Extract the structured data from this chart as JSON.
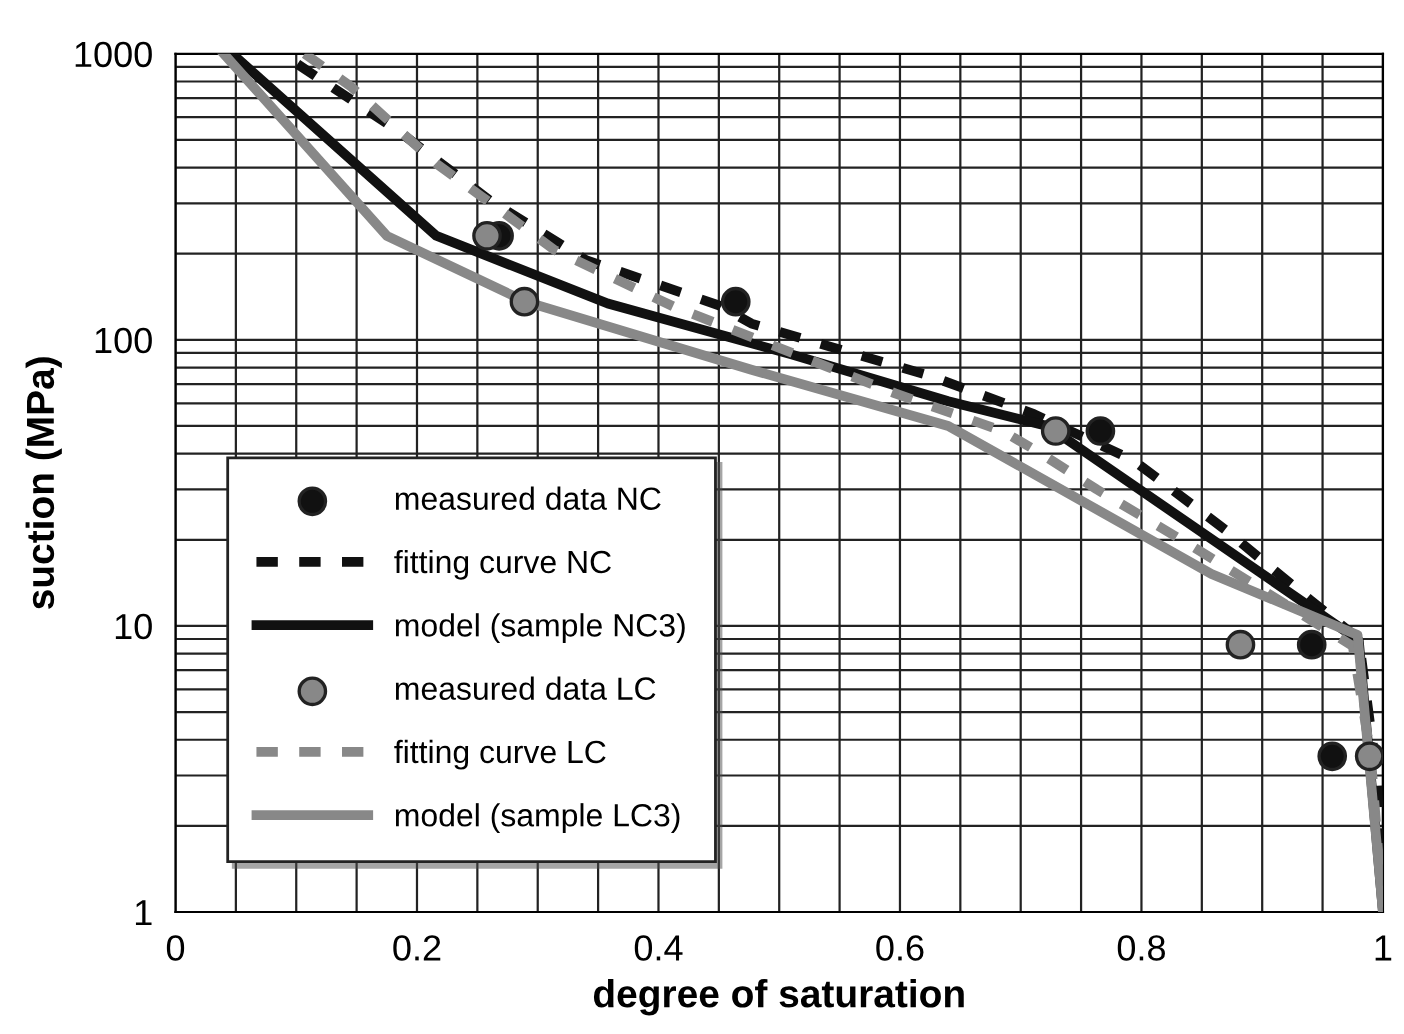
{
  "chart_data": {
    "type": "line",
    "xlabel": "degree of saturation",
    "ylabel": "suction (MPa)",
    "log": "y",
    "grid": true,
    "legend": "bottom left",
    "xlim": [
      0,
      1
    ],
    "ylim": [
      1,
      1000
    ],
    "xticks": [
      0,
      {
        "value": 0.05,
        "label": null
      },
      {
        "value": 0.1,
        "label": null
      },
      {
        "value": 0.15,
        "label": null
      },
      0.2,
      {
        "value": 0.25,
        "label": null
      },
      {
        "value": 0.3,
        "label": null
      },
      {
        "value": 0.35,
        "label": null
      },
      0.4,
      {
        "value": 0.45,
        "label": null
      },
      {
        "value": 0.5,
        "label": null
      },
      {
        "value": 0.55,
        "label": null
      },
      0.6,
      {
        "value": 0.65,
        "label": null
      },
      {
        "value": 0.7,
        "label": null
      },
      {
        "value": 0.75,
        "label": null
      },
      0.8,
      {
        "value": 0.85,
        "label": null
      },
      {
        "value": 0.9,
        "label": null
      },
      {
        "value": 0.95,
        "label": null
      },
      1
    ],
    "yticks": [
      1,
      {
        "value": 2,
        "label": null
      },
      {
        "value": 3,
        "label": null
      },
      {
        "value": 4,
        "label": null
      },
      {
        "value": 5,
        "label": null
      },
      {
        "value": 6,
        "label": null
      },
      {
        "value": 7,
        "label": null
      },
      {
        "value": 8,
        "label": null
      },
      {
        "value": 9,
        "label": null
      },
      10,
      {
        "value": 20,
        "label": null
      },
      {
        "value": 30,
        "label": null
      },
      {
        "value": 40,
        "label": null
      },
      {
        "value": 50,
        "label": null
      },
      {
        "value": 60,
        "label": null
      },
      {
        "value": 70,
        "label": null
      },
      {
        "value": 80,
        "label": null
      },
      {
        "value": 90,
        "label": null
      },
      100,
      {
        "value": 200,
        "label": null
      },
      {
        "value": 300,
        "label": null
      },
      {
        "value": 400,
        "label": null
      },
      {
        "value": 500,
        "label": null
      },
      {
        "value": 600,
        "label": null
      },
      {
        "value": 700,
        "label": null
      },
      {
        "value": 800,
        "label": null
      },
      {
        "value": 900,
        "label": null
      },
      1000
    ],
    "series": [
      {
        "name": "measured data NC",
        "type": "scatter",
        "marker": "circle",
        "color": "#111111",
        "x": [
          0.268,
          0.464,
          0.766,
          0.941,
          0.958
        ],
        "values": [
          231,
          136,
          48,
          8.6,
          3.5
        ]
      },
      {
        "name": "fitting curve NC",
        "line_style": "dashed",
        "marker": "none",
        "color": "#111111",
        "x": [
          0.101,
          0.183,
          0.26,
          0.34,
          0.45,
          0.477,
          0.624,
          0.711,
          0.793,
          0.87,
          0.94,
          0.98,
          0.995,
          1.0
        ],
        "values": [
          920,
          543,
          308,
          190,
          132,
          114,
          75,
          55,
          38,
          21.6,
          12.3,
          9,
          3,
          1
        ]
      },
      {
        "name": "model (sample NC3)",
        "line_style": "solid",
        "marker": "none",
        "color": "#111111",
        "x": [
          0.047,
          0.216,
          0.358,
          0.51,
          0.64,
          0.722,
          0.98,
          1.0
        ],
        "values": [
          1000,
          231,
          134,
          89,
          61,
          50,
          8.9,
          1
        ]
      },
      {
        "name": "measured data LC",
        "type": "scatter",
        "marker": "circle",
        "color": "#888888",
        "x": [
          0.258,
          0.289,
          0.729,
          0.882,
          0.989
        ],
        "values": [
          231,
          136,
          48,
          8.6,
          3.5
        ]
      },
      {
        "name": "fitting curve LC",
        "line_style": "dashed",
        "marker": "none",
        "color": "#888888",
        "x": [
          0.107,
          0.145,
          0.216,
          0.253,
          0.314,
          0.412,
          0.596,
          0.685,
          0.717,
          0.763,
          0.842,
          0.975,
          0.99,
          1.0
        ],
        "values": [
          1000,
          770,
          413,
          318,
          206,
          131,
          65,
          48,
          40,
          30,
          19,
          8.5,
          3.5,
          1
        ]
      },
      {
        "name": "model (sample LC3)",
        "line_style": "solid",
        "marker": "none",
        "color": "#888888",
        "x": [
          0.04,
          0.175,
          0.29,
          0.477,
          0.64,
          0.858,
          0.979,
          1.0
        ],
        "values": [
          1000,
          231,
          136,
          78.6,
          50,
          15.2,
          9.3,
          1
        ]
      }
    ]
  }
}
